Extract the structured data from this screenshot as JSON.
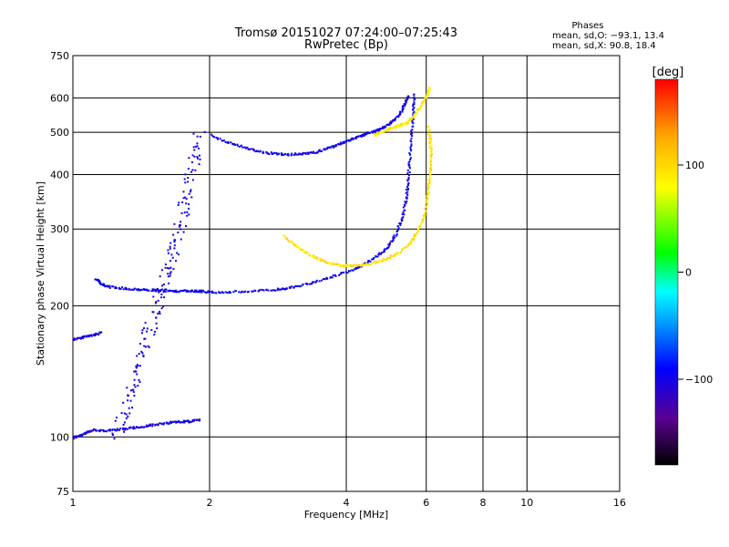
{
  "chart_data": {
    "type": "scatter",
    "title": "Tromsø 20151027 07:24:00–07:25:43",
    "subtitle": "RwPretec (Bp)",
    "xlabel": "Frequency [MHz]",
    "ylabel": "Stationary phase Virtual Height [km]",
    "x_scale": "log",
    "y_scale": "log",
    "xlim": [
      1,
      16
    ],
    "ylim": [
      75,
      750
    ],
    "x_ticks": [
      1,
      2,
      4,
      6,
      8,
      10,
      16
    ],
    "x_tick_labels": [
      "1",
      "2",
      "4",
      "6",
      "8",
      "10",
      "16"
    ],
    "y_ticks": [
      75,
      100,
      200,
      300,
      400,
      500,
      600,
      750
    ],
    "y_tick_labels": [
      "75",
      "100",
      "200",
      "300",
      "400",
      "500",
      "600",
      "750"
    ],
    "grid": true,
    "stats": {
      "heading": "Phases",
      "line_o": "mean, sd,O: −93.1, 13.4",
      "line_x": "mean, sd,X:  90.8, 18.4"
    },
    "colorbar": {
      "label": "[deg]",
      "ticks": [
        100,
        0,
        -100
      ],
      "tick_labels": [
        "100",
        "0",
        "−100"
      ],
      "range": [
        -180,
        180
      ],
      "colormap": [
        "#000000",
        "#5a0090",
        "#0000ff",
        "#00aaff",
        "#00ffff",
        "#00ff00",
        "#ffff00",
        "#ffaa00",
        "#ff0000"
      ]
    },
    "traces": [
      {
        "name": "o_lower",
        "phase": -95,
        "points": [
          [
            1.12,
            232
          ],
          [
            1.15,
            225
          ],
          [
            1.2,
            222
          ],
          [
            1.3,
            220
          ],
          [
            1.4,
            219
          ],
          [
            1.5,
            218
          ],
          [
            1.6,
            218
          ],
          [
            1.7,
            217
          ],
          [
            1.8,
            217
          ],
          [
            1.9,
            217
          ],
          [
            2.0,
            216
          ],
          [
            2.2,
            216
          ],
          [
            2.5,
            217
          ],
          [
            2.8,
            219
          ],
          [
            3.0,
            221
          ],
          [
            3.3,
            226
          ],
          [
            3.6,
            232
          ],
          [
            4.0,
            240
          ],
          [
            4.3,
            248
          ],
          [
            4.6,
            258
          ],
          [
            4.9,
            273
          ],
          [
            5.1,
            290
          ],
          [
            5.3,
            320
          ],
          [
            5.4,
            355
          ],
          [
            5.45,
            390
          ],
          [
            5.5,
            440
          ],
          [
            5.55,
            500
          ],
          [
            5.6,
            560
          ],
          [
            5.62,
            620
          ]
        ]
      },
      {
        "name": "o_upper",
        "phase": -98,
        "points": [
          [
            2.0,
            495
          ],
          [
            2.2,
            475
          ],
          [
            2.4,
            462
          ],
          [
            2.6,
            452
          ],
          [
            2.8,
            448
          ],
          [
            3.0,
            447
          ],
          [
            3.2,
            448
          ],
          [
            3.4,
            452
          ],
          [
            3.6,
            460
          ],
          [
            3.8,
            470
          ],
          [
            4.0,
            480
          ],
          [
            4.2,
            490
          ],
          [
            4.4,
            498
          ],
          [
            4.6,
            505
          ],
          [
            4.8,
            515
          ],
          [
            5.0,
            528
          ],
          [
            5.2,
            550
          ],
          [
            5.35,
            580
          ],
          [
            5.45,
            610
          ]
        ]
      },
      {
        "name": "x_lower",
        "phase": 95,
        "points": [
          [
            2.9,
            290
          ],
          [
            3.1,
            274
          ],
          [
            3.3,
            263
          ],
          [
            3.5,
            256
          ],
          [
            3.7,
            251
          ],
          [
            3.9,
            248
          ],
          [
            4.1,
            248
          ],
          [
            4.3,
            249
          ],
          [
            4.6,
            252
          ],
          [
            4.9,
            258
          ],
          [
            5.2,
            266
          ],
          [
            5.5,
            280
          ],
          [
            5.7,
            296
          ],
          [
            5.9,
            318
          ],
          [
            6.0,
            345
          ],
          [
            6.05,
            375
          ],
          [
            6.1,
            410
          ],
          [
            6.12,
            445
          ],
          [
            6.1,
            480
          ],
          [
            6.05,
            520
          ]
        ]
      },
      {
        "name": "x_upper",
        "phase": 90,
        "points": [
          [
            4.6,
            495
          ],
          [
            4.8,
            505
          ],
          [
            5.0,
            513
          ],
          [
            5.2,
            520
          ],
          [
            5.4,
            527
          ],
          [
            5.6,
            545
          ],
          [
            5.8,
            575
          ],
          [
            6.0,
            610
          ],
          [
            6.1,
            640
          ]
        ]
      },
      {
        "name": "spread_f",
        "phase": -100,
        "points": [
          [
            1.25,
            100
          ],
          [
            1.3,
            115
          ],
          [
            1.35,
            130
          ],
          [
            1.4,
            148
          ],
          [
            1.45,
            168
          ],
          [
            1.5,
            190
          ],
          [
            1.55,
            213
          ],
          [
            1.6,
            240
          ],
          [
            1.65,
            268
          ],
          [
            1.7,
            300
          ],
          [
            1.75,
            340
          ],
          [
            1.8,
            385
          ],
          [
            1.85,
            440
          ],
          [
            1.9,
            510
          ]
        ]
      },
      {
        "name": "e_layer",
        "phase": -100,
        "points": [
          [
            1.0,
            100
          ],
          [
            1.05,
            102
          ],
          [
            1.1,
            104
          ],
          [
            1.2,
            104
          ],
          [
            1.3,
            105
          ],
          [
            1.4,
            106
          ],
          [
            1.5,
            107
          ],
          [
            1.6,
            108
          ],
          [
            1.7,
            109
          ],
          [
            1.8,
            109
          ],
          [
            1.9,
            110
          ]
        ]
      },
      {
        "name": "low_es",
        "phase": -100,
        "points": [
          [
            1.0,
            168
          ],
          [
            1.05,
            170
          ],
          [
            1.1,
            172
          ],
          [
            1.15,
            174
          ]
        ]
      }
    ]
  }
}
